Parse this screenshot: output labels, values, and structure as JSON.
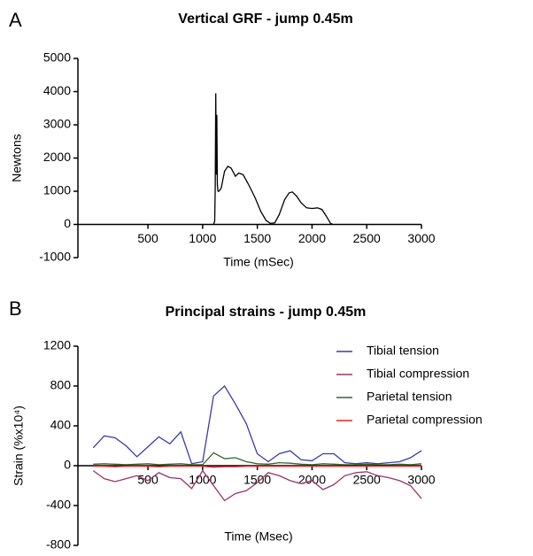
{
  "chart_data": [
    {
      "type": "line",
      "panel_label": "A",
      "title": "Vertical GRF - jump 0.45m",
      "xlabel": "Time (mSec)",
      "ylabel": "Newtons",
      "x": [
        1100,
        1110,
        1115,
        1120,
        1125,
        1130,
        1135,
        1140,
        1150,
        1170,
        1200,
        1230,
        1260,
        1300,
        1330,
        1370,
        1420,
        1480,
        1530,
        1580,
        1620,
        1660,
        1700,
        1750,
        1790,
        1820,
        1860,
        1900,
        1950,
        2000,
        2050,
        2090,
        2130,
        2170,
        2190
      ],
      "values": [
        0,
        100,
        1100,
        3950,
        1500,
        3300,
        1200,
        1000,
        1000,
        1100,
        1600,
        1750,
        1700,
        1450,
        1550,
        1500,
        1200,
        800,
        400,
        120,
        30,
        50,
        300,
        750,
        950,
        980,
        850,
        650,
        500,
        480,
        500,
        450,
        250,
        30,
        0
      ],
      "color": "#000000",
      "xlim": [
        -140,
        3000
      ],
      "xticks": [
        500,
        1000,
        1500,
        2000,
        2500,
        3000
      ],
      "ylim": [
        -1000,
        5000
      ],
      "yticks": [
        -1000,
        0,
        1000,
        2000,
        3000,
        4000,
        5000
      ]
    },
    {
      "type": "line",
      "panel_label": "B",
      "title": "Principal strains - jump 0.45m",
      "xlabel": "Time (Msec)",
      "ylabel": "Strain (%x10⁴)",
      "x": [
        0,
        100,
        200,
        300,
        400,
        500,
        600,
        700,
        800,
        900,
        1000,
        1100,
        1200,
        1300,
        1400,
        1500,
        1600,
        1700,
        1800,
        1900,
        2000,
        2100,
        2200,
        2300,
        2400,
        2500,
        2600,
        2700,
        2800,
        2900,
        3000
      ],
      "series": [
        {
          "name": "Tibial tension",
          "color": "#3b3ba6",
          "values": [
            180,
            300,
            280,
            200,
            90,
            190,
            290,
            220,
            340,
            20,
            40,
            700,
            800,
            620,
            420,
            120,
            40,
            120,
            150,
            60,
            50,
            120,
            120,
            30,
            20,
            30,
            20,
            30,
            40,
            80,
            150
          ]
        },
        {
          "name": "Tibial compression",
          "color": "#993366",
          "values": [
            -50,
            -130,
            -160,
            -130,
            -100,
            -150,
            -70,
            -120,
            -130,
            -230,
            -50,
            -200,
            -350,
            -280,
            -250,
            -170,
            -70,
            -100,
            -150,
            -180,
            -150,
            -240,
            -190,
            -100,
            -70,
            -60,
            -100,
            -120,
            -150,
            -200,
            -330
          ]
        },
        {
          "name": "Parietal tension",
          "color": "#336633",
          "values": [
            15,
            20,
            15,
            10,
            15,
            20,
            10,
            15,
            20,
            10,
            10,
            130,
            70,
            80,
            40,
            20,
            15,
            30,
            25,
            15,
            10,
            20,
            15,
            10,
            10,
            15,
            10,
            10,
            15,
            10,
            20
          ]
        },
        {
          "name": "Parietal compression",
          "color": "#ee2222",
          "values": [
            -5,
            -5,
            -10,
            -5,
            -5,
            -5,
            -10,
            -5,
            -5,
            -5,
            -5,
            -15,
            -10,
            -10,
            -5,
            -5,
            -5,
            -5,
            -5,
            -5,
            -5,
            -5,
            -5,
            -5,
            -5,
            -5,
            -5,
            -5,
            -5,
            -5,
            -5
          ]
        }
      ],
      "xlim": [
        -140,
        3000
      ],
      "xticks": [
        500,
        1000,
        1500,
        2000,
        2500,
        3000
      ],
      "ylim": [
        -800,
        1200
      ],
      "yticks": [
        -800,
        -400,
        0,
        400,
        800,
        1200
      ]
    }
  ]
}
